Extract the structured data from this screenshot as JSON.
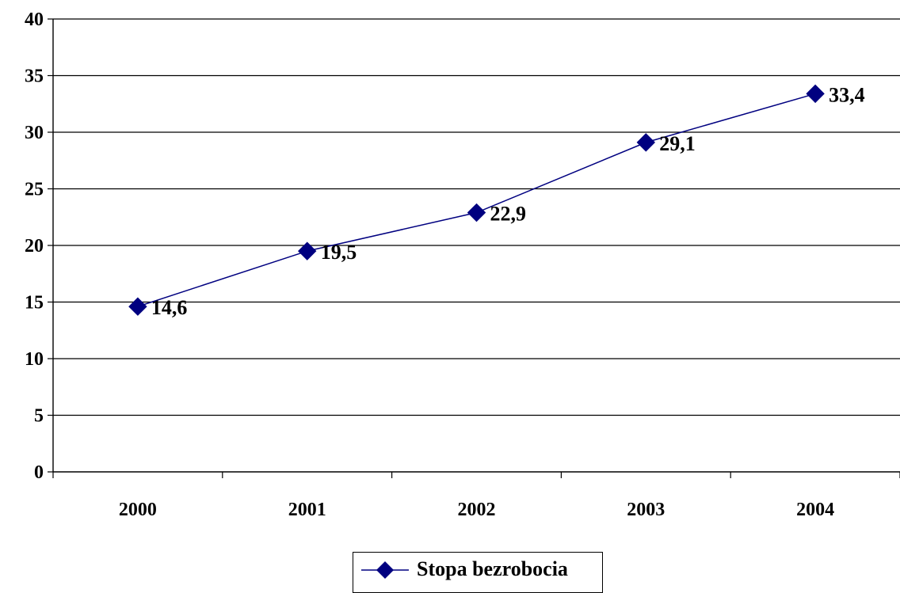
{
  "chart_data": {
    "type": "line",
    "categories": [
      "2000",
      "2001",
      "2002",
      "2003",
      "2004"
    ],
    "series": [
      {
        "name": "Stopa bezrobocia",
        "values": [
          14.6,
          19.5,
          22.9,
          29.1,
          33.4
        ],
        "data_labels": [
          "14,6",
          "19,5",
          "22,9",
          "29,1",
          "33,4"
        ],
        "color": "#000080",
        "marker": "diamond"
      }
    ],
    "title": "",
    "xlabel": "",
    "ylabel": "",
    "ylim": [
      0,
      40
    ],
    "yticks": [
      "0",
      "5",
      "10",
      "15",
      "20",
      "25",
      "30",
      "35",
      "40"
    ],
    "grid": "horizontal",
    "legend_position": "bottom"
  }
}
